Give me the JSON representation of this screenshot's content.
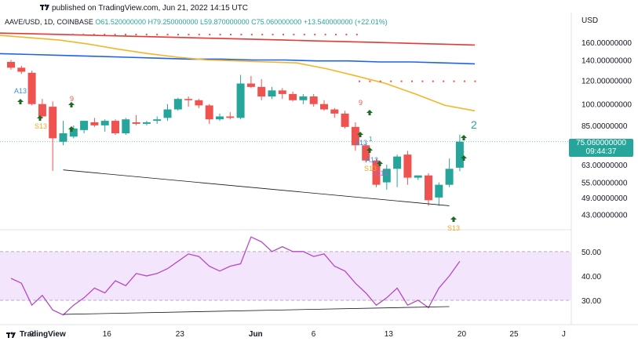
{
  "header": {
    "published": "published on TradingView.com, Jun 21, 2022 14:15 UTC"
  },
  "legend": {
    "symbol": "AAVE/USD, 1D, COINBASE",
    "o": "O61.520000000",
    "h": "H79.250000000",
    "l": "L59.870000000",
    "c": "C75.060000000",
    "chg": "+13.540000000 (+22.01%)"
  },
  "currency": "USD",
  "last_price": {
    "value": "75.060000000",
    "countdown": "09:44:37"
  },
  "footer": {
    "brand": "TradingView"
  },
  "colors": {
    "up": "#26a69a",
    "down": "#ef5350",
    "ma200": "#e53935",
    "ma100": "#1e63e9",
    "ma50": "#f5b528",
    "rsi": "#b548c6",
    "rsi_bg": "#f3e5fb"
  },
  "chart_data": {
    "type": "candlestick",
    "title": "AAVE/USD, 1D, COINBASE",
    "x_ticks": [
      "9",
      "16",
      "23",
      "Jun",
      "6",
      "13",
      "20",
      "25",
      "J"
    ],
    "y_ticks": [
      "160.00000000",
      "140.00000000",
      "120.00000000",
      "100.00000000",
      "85.00000000",
      "75.00000000",
      "63.00000000",
      "55.00000000",
      "49.00000000",
      "43.00000000"
    ],
    "y_scale": "log",
    "candles": [
      {
        "o": 138,
        "h": 140,
        "l": 130,
        "c": 132
      },
      {
        "o": 132,
        "h": 134,
        "l": 126,
        "c": 128
      },
      {
        "o": 127,
        "h": 129,
        "l": 99,
        "c": 100
      },
      {
        "o": 100,
        "h": 104,
        "l": 90,
        "c": 91
      },
      {
        "o": 98,
        "h": 102,
        "l": 60,
        "c": 77
      },
      {
        "o": 75,
        "h": 88,
        "l": 73,
        "c": 80
      },
      {
        "o": 78,
        "h": 85,
        "l": 77,
        "c": 83
      },
      {
        "o": 82,
        "h": 88,
        "l": 80,
        "c": 88
      },
      {
        "o": 87,
        "h": 90,
        "l": 84,
        "c": 85
      },
      {
        "o": 85,
        "h": 89,
        "l": 81,
        "c": 88
      },
      {
        "o": 88,
        "h": 89,
        "l": 79,
        "c": 80
      },
      {
        "o": 80,
        "h": 90,
        "l": 79,
        "c": 89
      },
      {
        "o": 87,
        "h": 92,
        "l": 85,
        "c": 86
      },
      {
        "o": 86,
        "h": 88,
        "l": 85,
        "c": 87
      },
      {
        "o": 88,
        "h": 91,
        "l": 86,
        "c": 89
      },
      {
        "o": 90,
        "h": 100,
        "l": 88,
        "c": 96
      },
      {
        "o": 96,
        "h": 105,
        "l": 95,
        "c": 104
      },
      {
        "o": 104,
        "h": 106,
        "l": 98,
        "c": 103
      },
      {
        "o": 103,
        "h": 104,
        "l": 97,
        "c": 99
      },
      {
        "o": 99,
        "h": 100,
        "l": 86,
        "c": 89
      },
      {
        "o": 89,
        "h": 93,
        "l": 88,
        "c": 91
      },
      {
        "o": 91,
        "h": 94,
        "l": 89,
        "c": 90
      },
      {
        "o": 90,
        "h": 125,
        "l": 89,
        "c": 117
      },
      {
        "o": 117,
        "h": 124,
        "l": 113,
        "c": 114
      },
      {
        "o": 114,
        "h": 121,
        "l": 103,
        "c": 106
      },
      {
        "o": 106,
        "h": 114,
        "l": 104,
        "c": 111
      },
      {
        "o": 111,
        "h": 113,
        "l": 104,
        "c": 108
      },
      {
        "o": 108,
        "h": 110,
        "l": 102,
        "c": 103
      },
      {
        "o": 103,
        "h": 108,
        "l": 100,
        "c": 106
      },
      {
        "o": 106,
        "h": 108,
        "l": 98,
        "c": 100
      },
      {
        "o": 100,
        "h": 103,
        "l": 95,
        "c": 96
      },
      {
        "o": 96,
        "h": 97,
        "l": 90,
        "c": 93
      },
      {
        "o": 93,
        "h": 95,
        "l": 83,
        "c": 84
      },
      {
        "o": 84,
        "h": 87,
        "l": 70,
        "c": 73
      },
      {
        "o": 73,
        "h": 74,
        "l": 64,
        "c": 65
      },
      {
        "o": 65,
        "h": 66,
        "l": 53,
        "c": 54
      },
      {
        "o": 55,
        "h": 63,
        "l": 52,
        "c": 61
      },
      {
        "o": 61,
        "h": 68,
        "l": 53,
        "c": 67
      },
      {
        "o": 68,
        "h": 70,
        "l": 54,
        "c": 57
      },
      {
        "o": 57,
        "h": 58,
        "l": 56,
        "c": 58
      },
      {
        "o": 58,
        "h": 59,
        "l": 46,
        "c": 48
      },
      {
        "o": 49,
        "h": 55,
        "l": 46,
        "c": 54
      },
      {
        "o": 54,
        "h": 66,
        "l": 53,
        "c": 61
      },
      {
        "o": 61.52,
        "h": 79.25,
        "l": 59.87,
        "c": 75.06
      }
    ],
    "ma200": [
      172,
      171,
      170,
      169,
      168,
      167,
      166,
      165,
      164,
      163,
      162,
      161,
      160,
      159,
      158,
      157
    ],
    "ma100": [
      147,
      146,
      145,
      144,
      143,
      142,
      141,
      141,
      140,
      140,
      139,
      139,
      138,
      138,
      137,
      136
    ],
    "ma50": [
      169,
      166,
      163,
      158,
      152,
      147,
      143,
      140,
      139,
      138,
      137,
      131,
      124,
      117,
      108,
      99,
      95
    ],
    "rsi_y_ticks": [
      "50.00",
      "40.00",
      "30.00"
    ],
    "rsi_levels": {
      "upper": 50,
      "lower": 30
    },
    "rsi": [
      39,
      37,
      28,
      32,
      26,
      24,
      28,
      31,
      35,
      33,
      38,
      36,
      41,
      40,
      41,
      43,
      46,
      49,
      48,
      44,
      42,
      44,
      45,
      56,
      54,
      50,
      52,
      50,
      50,
      48,
      49,
      44,
      42,
      37,
      33,
      28,
      31,
      35,
      28,
      30,
      27,
      35,
      40,
      46
    ],
    "annotations": {
      "td_labels": [
        {
          "text": "9",
          "color": "red"
        },
        {
          "text": "9",
          "color": "red"
        },
        {
          "text": "2",
          "color": "green"
        },
        {
          "text": "1",
          "color": "green"
        },
        {
          "text": "1",
          "color": "green"
        }
      ],
      "setup_labels": [
        "A13",
        "S13",
        "A13",
        "S13",
        "C13",
        "S13"
      ]
    }
  }
}
